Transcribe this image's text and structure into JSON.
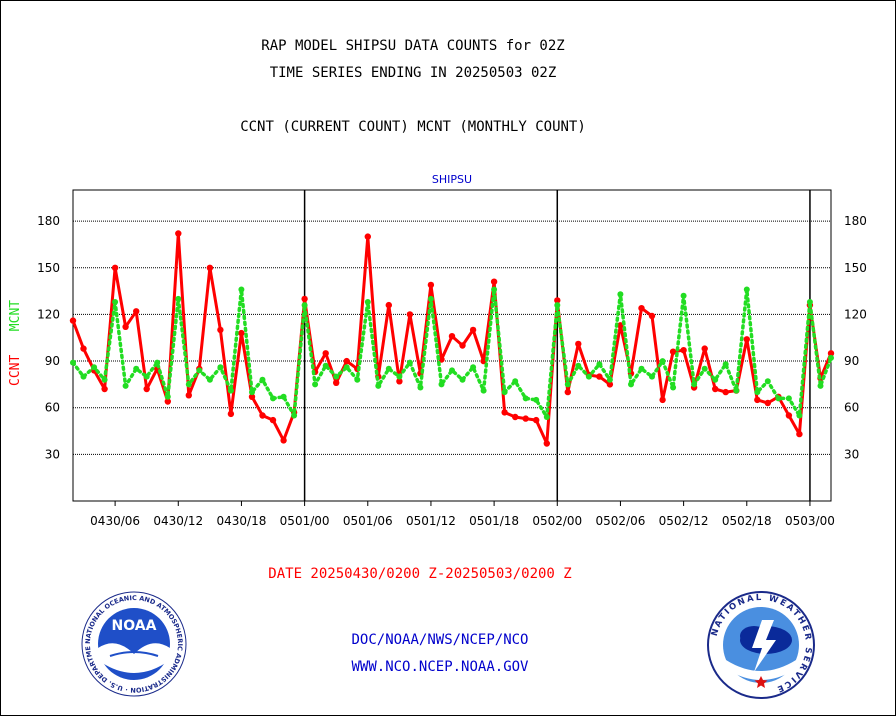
{
  "header": {
    "title_line1": "RAP MODEL SHIPSU DATA COUNTS for 02Z",
    "title_line2": "TIME SERIES ENDING IN 20250503 02Z",
    "subtitle": "CCNT (CURRENT COUNT) MCNT (MONTHLY COUNT)"
  },
  "chart_data": {
    "type": "line",
    "title": "SHIPSU",
    "ylabel_left": "CCNT",
    "ylabel_right": "MCNT",
    "ylim": [
      0,
      200
    ],
    "yticks": [
      30,
      60,
      90,
      120,
      150,
      180
    ],
    "x_tick_labels": [
      "0430/06",
      "0430/12",
      "0430/18",
      "0501/00",
      "0501/06",
      "0501/12",
      "0501/18",
      "0502/00",
      "0502/06",
      "0502/12",
      "0502/18",
      "0503/00"
    ],
    "x_range_hours": [
      2,
      74
    ],
    "grid": true,
    "colors": {
      "ccnt": "#ff0000",
      "mcnt": "#22dd22",
      "title": "#0000cc"
    },
    "series": [
      {
        "name": "CCNT",
        "style": "solid",
        "values": [
          116,
          98,
          84,
          72,
          150,
          112,
          122,
          72,
          85,
          64,
          172,
          68,
          85,
          150,
          110,
          56,
          108,
          67,
          55,
          52,
          39,
          57,
          130,
          83,
          95,
          76,
          90,
          85,
          170,
          80,
          126,
          77,
          120,
          82,
          139,
          91,
          106,
          100,
          110,
          90,
          141,
          57,
          54,
          53,
          52,
          37,
          129,
          70,
          101,
          81,
          80,
          75,
          113,
          82,
          124,
          119,
          65,
          96,
          97,
          73,
          98,
          72,
          70,
          71,
          104,
          65,
          63,
          67,
          55,
          43,
          126,
          79,
          95
        ]
      },
      {
        "name": "MCNT",
        "style": "dotted",
        "values": [
          89,
          80,
          86,
          78,
          128,
          74,
          85,
          80,
          89,
          67,
          130,
          75,
          84,
          78,
          86,
          71,
          136,
          70,
          78,
          66,
          67,
          55,
          126,
          75,
          87,
          80,
          86,
          78,
          128,
          74,
          85,
          80,
          89,
          73,
          130,
          75,
          84,
          78,
          86,
          71,
          136,
          70,
          77,
          66,
          65,
          54,
          126,
          75,
          87,
          80,
          88,
          78,
          133,
          75,
          85,
          80,
          90,
          73,
          132,
          75,
          85,
          78,
          88,
          71,
          136,
          70,
          77,
          66,
          66,
          55,
          128,
          74,
          92
        ]
      }
    ]
  },
  "footer": {
    "date_range": "DATE 20250430/0200 Z-20250503/0200 Z",
    "org_line1": "DOC/NOAA/NWS/NCEP/NCO",
    "org_line2": "WWW.NCO.NCEP.NOAA.GOV",
    "noaa_logo_text": "NOAA",
    "noaa_ring_text": "NATIONAL OCEANIC AND ATMOSPHERIC ADMINISTRATION · U.S. DEPARTMENT OF COMMERCE",
    "nws_ring_text": "NATIONAL WEATHER SERVICE"
  }
}
